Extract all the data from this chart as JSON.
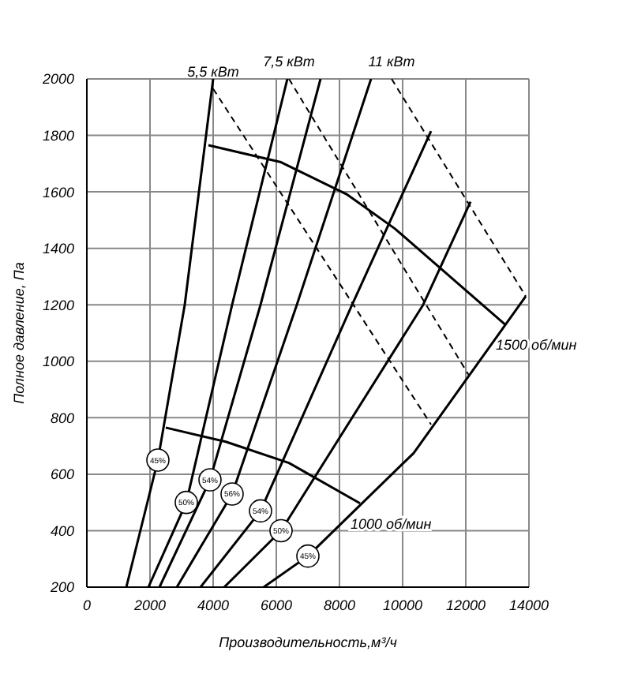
{
  "chart_data": {
    "type": "line",
    "xlabel": "Производительность,м³/ч",
    "ylabel": "Полное давление, Па",
    "xlim": [
      0,
      14000
    ],
    "xticks": [
      0,
      2000,
      4000,
      6000,
      8000,
      10000,
      12000,
      14000
    ],
    "ylim": [
      200,
      2000
    ],
    "yticks": [
      200,
      400,
      600,
      800,
      1000,
      1200,
      1400,
      1600,
      1800,
      2000
    ],
    "grid": true,
    "marker": "none",
    "line_style": "solid",
    "series": [
      {
        "color": "#000000",
        "x": [
          1250,
          2250,
          3100,
          4000
        ],
        "values": [
          200,
          650,
          1200,
          2000
        ]
      },
      {
        "color": "#000000",
        "x": [
          1950,
          3150,
          4600,
          6350
        ],
        "values": [
          200,
          500,
          1200,
          2000
        ]
      },
      {
        "color": "#000000",
        "x": [
          2300,
          3900,
          5500,
          7400
        ],
        "values": [
          200,
          580,
          1200,
          2000
        ]
      },
      {
        "color": "#000000",
        "x": [
          2850,
          4600,
          6650,
          9000
        ],
        "values": [
          200,
          530,
          1200,
          2000
        ]
      },
      {
        "color": "#000000",
        "x": [
          3600,
          5500,
          8400,
          10900
        ],
        "values": [
          200,
          470,
          1200,
          1815
        ]
      },
      {
        "color": "#000000",
        "x": [
          4350,
          6150,
          10650,
          12150
        ],
        "values": [
          200,
          400,
          1200,
          1565
        ]
      },
      {
        "color": "#000000",
        "x": [
          5600,
          7000,
          10350,
          13900
        ],
        "values": [
          200,
          310,
          675,
          1230
        ]
      },
      {
        "name": "1500 об/мин",
        "color": "#000000",
        "x": [
          3850,
          6150,
          8250,
          9750,
          13250
        ],
        "values": [
          1765,
          1705,
          1590,
          1470,
          1130
        ]
      },
      {
        "name": "1000 об/мин",
        "color": "#000000",
        "x": [
          2500,
          4400,
          6400,
          8650
        ],
        "values": [
          765,
          715,
          640,
          497
        ]
      },
      {
        "name": "5,5 кВт",
        "color": "#000000",
        "line_style": "dashed",
        "x": [
          4000,
          10900
        ],
        "values": [
          1965,
          776
        ]
      },
      {
        "name": "7,5 кВт",
        "color": "#000000",
        "line_style": "dashed",
        "x": [
          6400,
          12100
        ],
        "values": [
          2000,
          950
        ]
      },
      {
        "name": "11 кВт",
        "color": "#000000",
        "line_style": "dashed",
        "x": [
          9650,
          13900
        ],
        "values": [
          2000,
          1230
        ]
      }
    ],
    "annotations": [
      {
        "text": "45%",
        "x": 2250,
        "y": 650
      },
      {
        "text": "50%",
        "x": 3150,
        "y": 500
      },
      {
        "text": "54%",
        "x": 3900,
        "y": 580
      },
      {
        "text": "56%",
        "x": 4600,
        "y": 530
      },
      {
        "text": "54%",
        "x": 5500,
        "y": 470
      },
      {
        "text": "50%",
        "x": 6150,
        "y": 400
      },
      {
        "text": "45%",
        "x": 7000,
        "y": 310
      }
    ]
  }
}
